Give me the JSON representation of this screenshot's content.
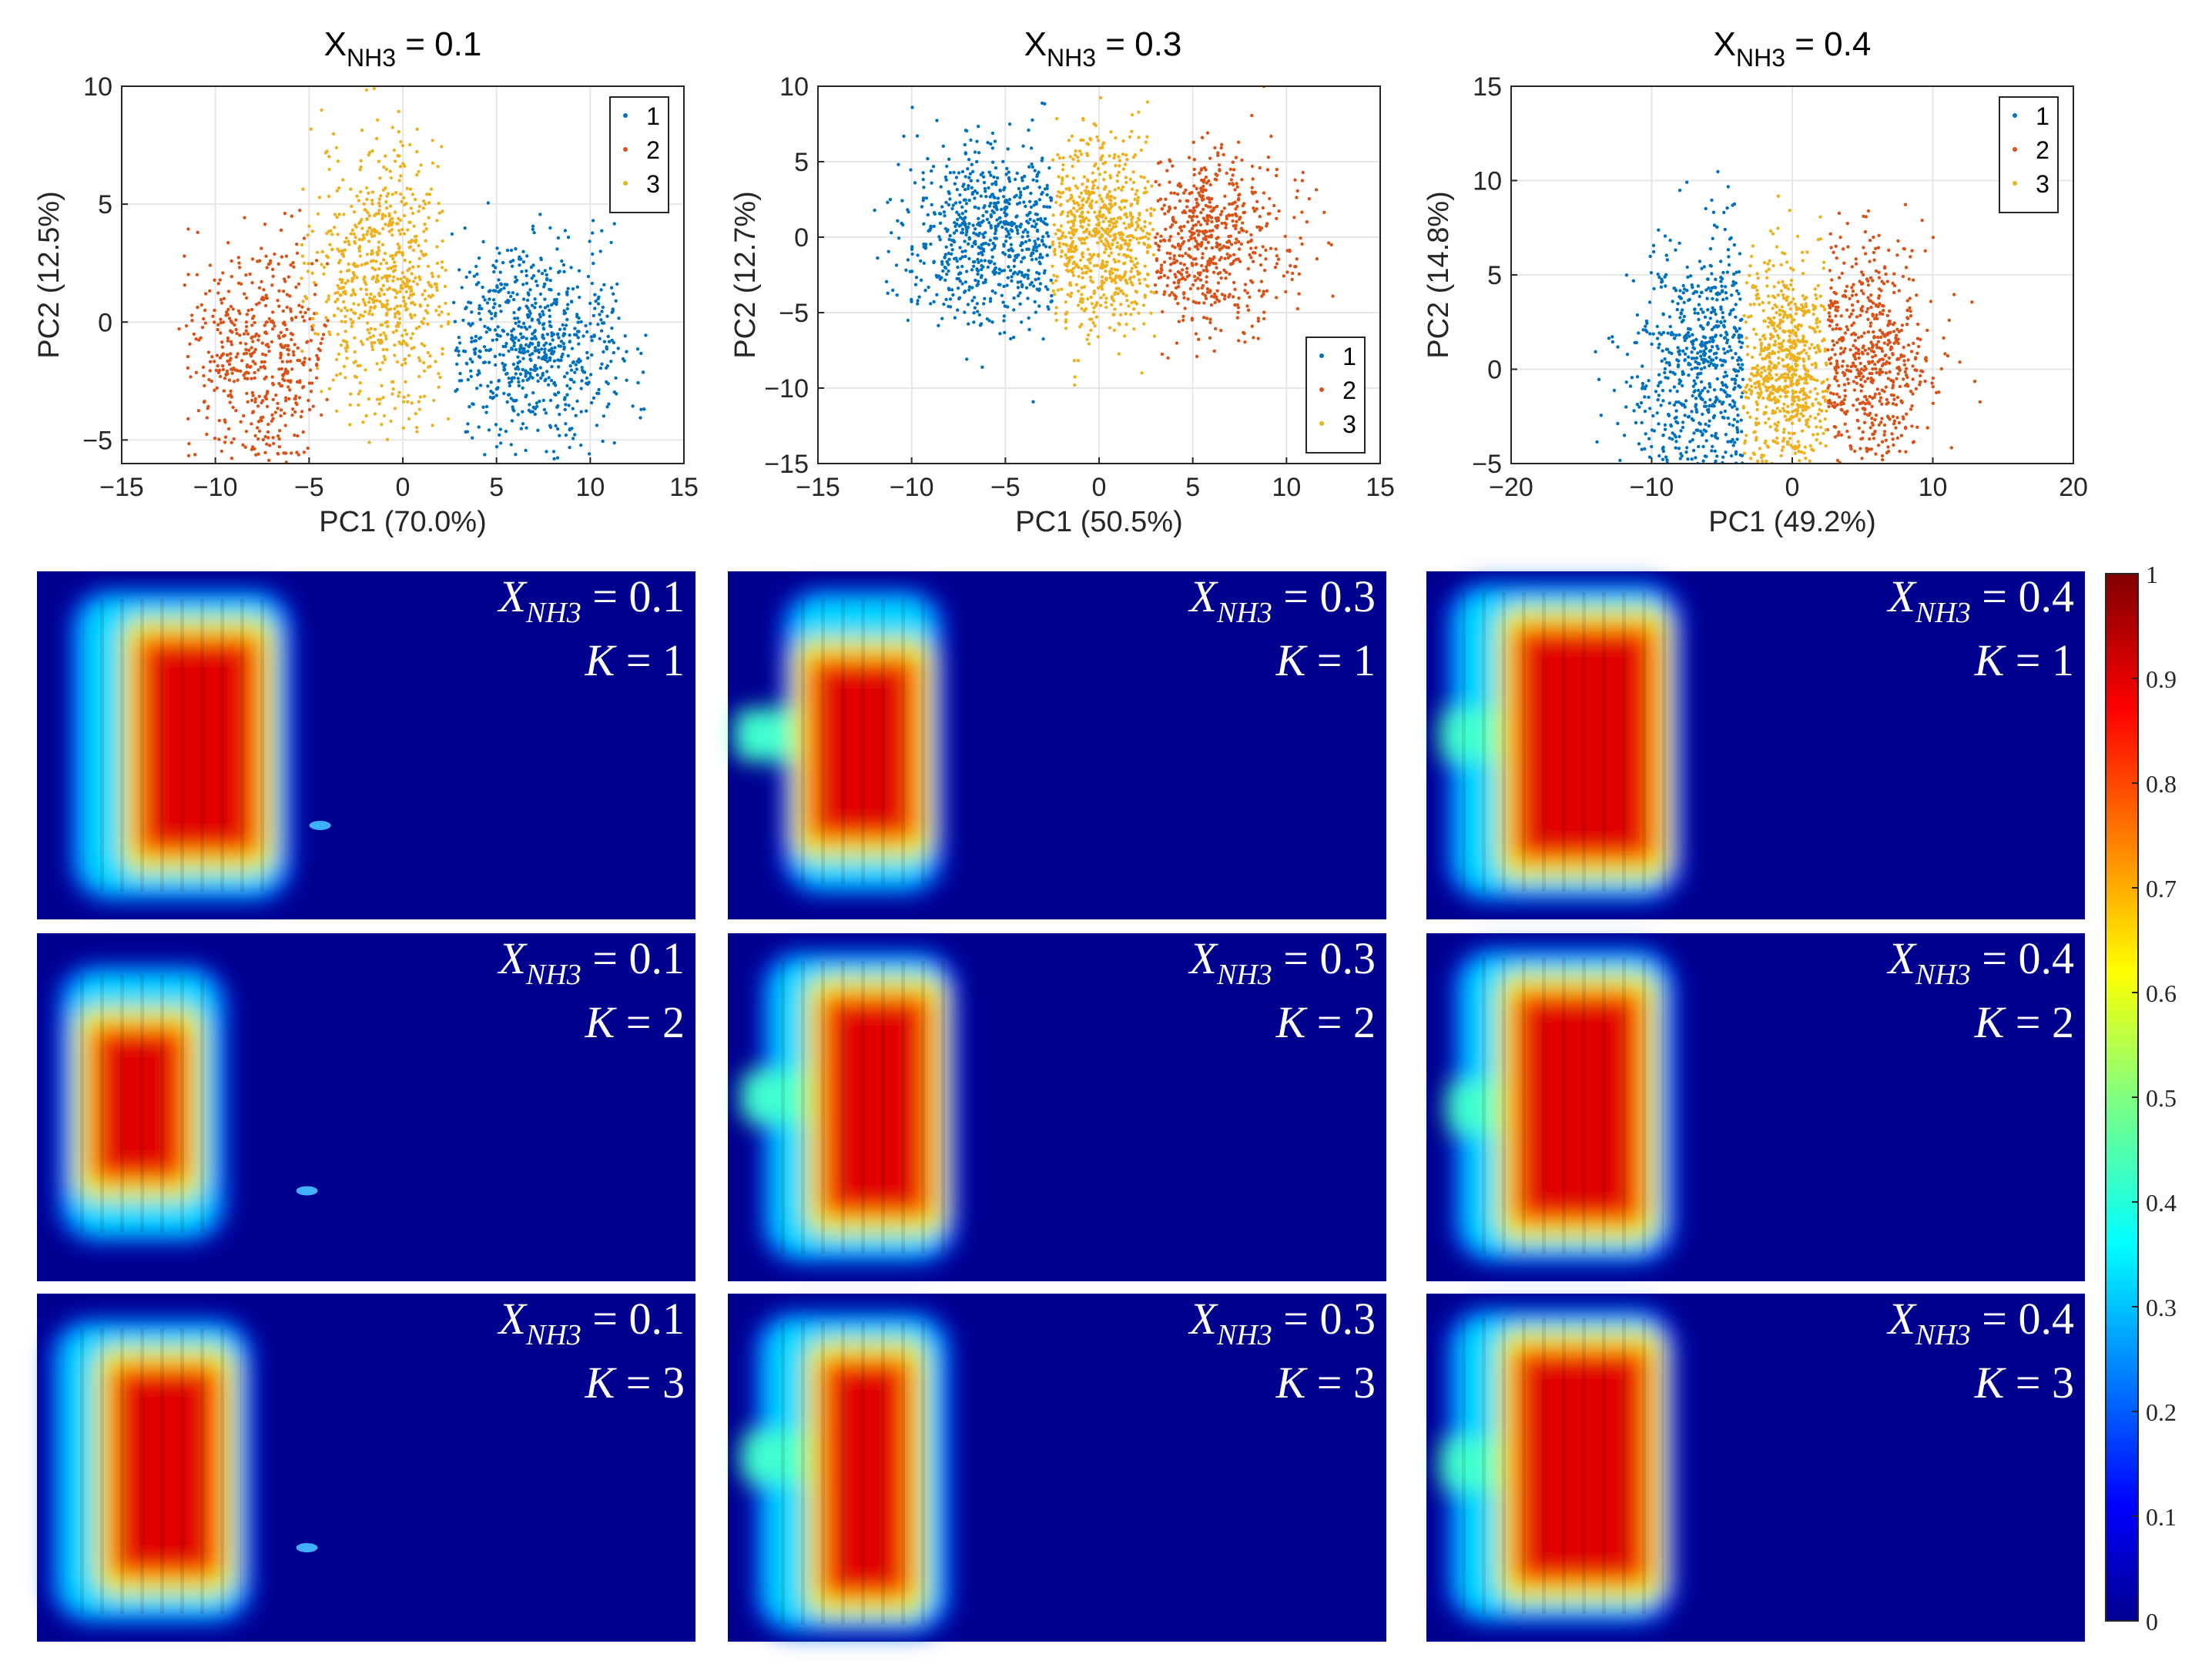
{
  "chart_data": [
    {
      "type": "scatter",
      "title_main": "X",
      "title_sub": "NH3",
      "title_value": " = 0.1",
      "xlabel": "PC1 (70.0%)",
      "ylabel": "PC2 (12.5%)",
      "xlim": [
        -15,
        15
      ],
      "ylim": [
        -6,
        10
      ],
      "xticks": [
        -15,
        -10,
        -5,
        0,
        5,
        10,
        15
      ],
      "yticks": [
        -5,
        0,
        5,
        10
      ],
      "legend": [
        "1",
        "2",
        "3"
      ],
      "legend_position": "top-right",
      "grid": true,
      "clusters": [
        {
          "name": "1",
          "color": "#0072BD",
          "n": 700,
          "x_range": [
            2.5,
            13
          ],
          "center": [
            7,
            -1
          ],
          "spread": [
            2.5,
            2.2
          ]
        },
        {
          "name": "2",
          "color": "#D95319",
          "n": 500,
          "x_range": [
            -12,
            -4
          ],
          "center": [
            -7.5,
            -1.5
          ],
          "spread": [
            2.2,
            2.5
          ]
        },
        {
          "name": "3",
          "color": "#EDB120",
          "n": 700,
          "x_range": [
            -5.5,
            2.5
          ],
          "center": [
            -1,
            2
          ],
          "spread": [
            2.0,
            3.0
          ]
        }
      ]
    },
    {
      "type": "scatter",
      "title_main": "X",
      "title_sub": "NH3",
      "title_value": " = 0.3",
      "xlabel": "PC1 (50.5%)",
      "ylabel": "PC2 (12.7%)",
      "xlim": [
        -15,
        15
      ],
      "ylim": [
        -15,
        10
      ],
      "xticks": [
        -15,
        -10,
        -5,
        0,
        5,
        10,
        15
      ],
      "yticks": [
        -15,
        -10,
        -5,
        0,
        5,
        10
      ],
      "legend": [
        "1",
        "2",
        "3"
      ],
      "legend_position": "bottom-right",
      "grid": true,
      "clusters": [
        {
          "name": "1",
          "color": "#0072BD",
          "n": 700,
          "x_range": [
            -12,
            -2.5
          ],
          "center": [
            -5.5,
            0
          ],
          "spread": [
            2.5,
            3.0
          ]
        },
        {
          "name": "2",
          "color": "#D95319",
          "n": 600,
          "x_range": [
            3,
            13
          ],
          "center": [
            5.5,
            0
          ],
          "spread": [
            2.5,
            3.0
          ]
        },
        {
          "name": "3",
          "color": "#EDB120",
          "n": 700,
          "x_range": [
            -2.5,
            3
          ],
          "center": [
            0,
            0
          ],
          "spread": [
            2.0,
            3.2
          ]
        }
      ]
    },
    {
      "type": "scatter",
      "title_main": "X",
      "title_sub": "NH3",
      "title_value": " = 0.4",
      "xlabel": "PC1 (49.2%)",
      "ylabel": "PC2 (14.8%)",
      "xlim": [
        -20,
        20
      ],
      "ylim": [
        -5,
        15
      ],
      "xticks": [
        -20,
        -10,
        0,
        10,
        20
      ],
      "yticks": [
        -5,
        0,
        5,
        10,
        15
      ],
      "legend": [
        "1",
        "2",
        "3"
      ],
      "legend_position": "top-right",
      "grid": true,
      "clusters": [
        {
          "name": "1",
          "color": "#0072BD",
          "n": 650,
          "x_range": [
            -16,
            -3.5
          ],
          "center": [
            -5.5,
            0
          ],
          "spread": [
            3.0,
            3.5
          ]
        },
        {
          "name": "2",
          "color": "#D95319",
          "n": 600,
          "x_range": [
            2.5,
            15
          ],
          "center": [
            5,
            0.5
          ],
          "spread": [
            2.5,
            3.0
          ]
        },
        {
          "name": "3",
          "color": "#EDB120",
          "n": 700,
          "x_range": [
            -3.5,
            2.5
          ],
          "center": [
            -0.5,
            0
          ],
          "spread": [
            1.8,
            3.0
          ]
        }
      ]
    },
    {
      "type": "heatmap",
      "colormap": "jet",
      "colorbar_range": [
        0,
        1
      ],
      "colorbar_ticks": [
        "0",
        "0.1",
        "0.2",
        "0.3",
        "0.4",
        "0.5",
        "0.6",
        "0.7",
        "0.8",
        "0.9",
        "1"
      ],
      "panels": [
        {
          "row": 1,
          "col": 1,
          "label_x": "X",
          "label_sub": "NH3",
          "label_value": " = 0.1",
          "k_label": "K = 1"
        },
        {
          "row": 1,
          "col": 2,
          "label_x": "X",
          "label_sub": "NH3",
          "label_value": " = 0.3",
          "k_label": "K = 1"
        },
        {
          "row": 1,
          "col": 3,
          "label_x": "X",
          "label_sub": "NH3",
          "label_value": " = 0.4",
          "k_label": "K = 1"
        },
        {
          "row": 2,
          "col": 1,
          "label_x": "X",
          "label_sub": "NH3",
          "label_value": " = 0.1",
          "k_label": "K = 2"
        },
        {
          "row": 2,
          "col": 2,
          "label_x": "X",
          "label_sub": "NH3",
          "label_value": " = 0.3",
          "k_label": "K = 2"
        },
        {
          "row": 2,
          "col": 3,
          "label_x": "X",
          "label_sub": "NH3",
          "label_value": " = 0.4",
          "k_label": "K = 2"
        },
        {
          "row": 3,
          "col": 1,
          "label_x": "X",
          "label_sub": "NH3",
          "label_value": " = 0.1",
          "k_label": "K = 3"
        },
        {
          "row": 3,
          "col": 2,
          "label_x": "X",
          "label_sub": "NH3",
          "label_value": " = 0.3",
          "k_label": "K = 3"
        },
        {
          "row": 3,
          "col": 3,
          "label_x": "X",
          "label_sub": "NH3",
          "label_value": " = 0.4",
          "k_label": "K = 3"
        }
      ]
    }
  ]
}
